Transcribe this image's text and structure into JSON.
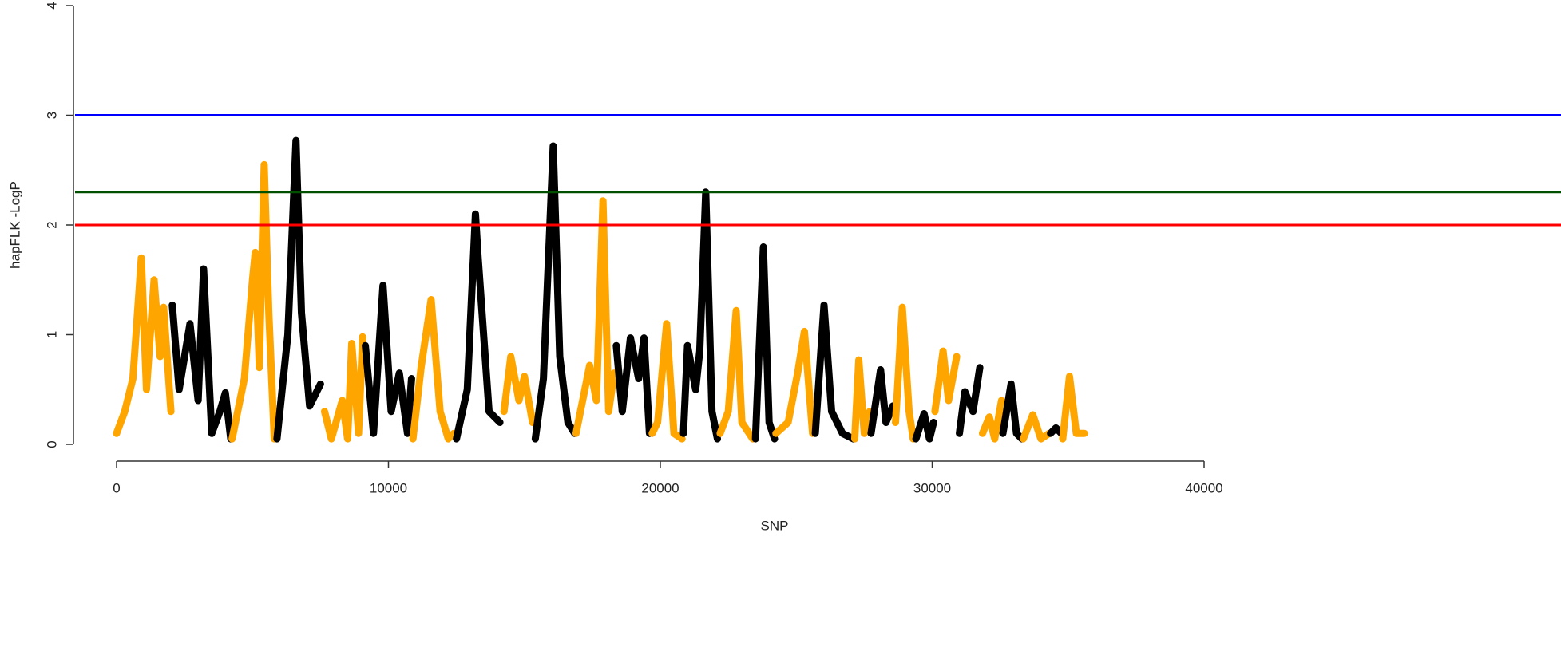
{
  "chart_data": {
    "type": "line",
    "xlabel": "SNP",
    "ylabel": "hapFLK -LogP",
    "xlim": [
      0,
      40000
    ],
    "xticks": [
      0,
      10000,
      20000,
      30000,
      40000
    ],
    "ylim": [
      0,
      4
    ],
    "yticks": [
      0,
      1,
      2,
      3,
      4
    ],
    "hlines": [
      {
        "value": 3,
        "color": "#0000ff"
      },
      {
        "value": 2.3,
        "color": "#005000"
      },
      {
        "value": 2,
        "color": "#ff0000"
      }
    ],
    "series": [
      {
        "color": "#ffa500",
        "x": [
          0,
          300,
          600,
          910,
          1100,
          1380,
          1600,
          1730,
          2000
        ],
        "values": [
          0.1,
          0.3,
          0.6,
          1.7,
          0.5,
          1.5,
          0.8,
          1.25,
          0.3
        ]
      },
      {
        "color": "#000000",
        "x": [
          2050,
          2300,
          2700,
          3000,
          3200,
          3500,
          3800,
          4000,
          4200
        ],
        "values": [
          1.27,
          0.5,
          1.1,
          0.4,
          1.6,
          0.1,
          0.3,
          0.47,
          0.05
        ]
      },
      {
        "color": "#ffa500",
        "x": [
          4250,
          4700,
          5000,
          5100,
          5250,
          5430,
          5600,
          5800
        ],
        "values": [
          0.05,
          0.6,
          1.5,
          1.75,
          0.7,
          2.55,
          1.2,
          0.05
        ]
      },
      {
        "color": "#000000",
        "x": [
          5900,
          6300,
          6600,
          6800,
          7100,
          7500
        ],
        "values": [
          0.05,
          1.0,
          2.77,
          1.2,
          0.35,
          0.55
        ]
      },
      {
        "color": "#ffa500",
        "x": [
          7650,
          7900,
          8300,
          8500,
          8650,
          8900,
          9050
        ],
        "values": [
          0.3,
          0.05,
          0.4,
          0.05,
          0.92,
          0.1,
          0.98
        ]
      },
      {
        "color": "#000000",
        "x": [
          9150,
          9450,
          9800,
          10100,
          10400,
          10700,
          10850
        ],
        "values": [
          0.9,
          0.1,
          1.45,
          0.3,
          0.65,
          0.1,
          0.6
        ]
      },
      {
        "color": "#ffa500",
        "x": [
          10900,
          11200,
          11570,
          11900,
          12200,
          12400
        ],
        "values": [
          0.05,
          0.7,
          1.32,
          0.3,
          0.05,
          0.1
        ]
      },
      {
        "color": "#000000",
        "x": [
          12500,
          12900,
          13200,
          13300,
          13700,
          14100
        ],
        "values": [
          0.05,
          0.5,
          2.1,
          1.7,
          0.3,
          0.2
        ]
      },
      {
        "color": "#ffa500",
        "x": [
          14250,
          14500,
          14800,
          15000,
          15300
        ],
        "values": [
          0.3,
          0.8,
          0.4,
          0.62,
          0.2
        ]
      },
      {
        "color": "#000000",
        "x": [
          15400,
          15700,
          16060,
          16300,
          16600,
          16850
        ],
        "values": [
          0.05,
          0.6,
          2.72,
          0.8,
          0.2,
          0.1
        ]
      },
      {
        "color": "#ffa500",
        "x": [
          16900,
          17400,
          17650,
          17890,
          18100,
          18300
        ],
        "values": [
          0.1,
          0.72,
          0.4,
          2.22,
          0.3,
          0.65
        ]
      },
      {
        "color": "#000000",
        "x": [
          18380,
          18600,
          18900,
          19200,
          19400,
          19600
        ],
        "values": [
          0.9,
          0.3,
          0.97,
          0.6,
          0.97,
          0.1
        ]
      },
      {
        "color": "#ffa500",
        "x": [
          19700,
          19900,
          20230,
          20500,
          20800
        ],
        "values": [
          0.1,
          0.2,
          1.1,
          0.1,
          0.05
        ]
      },
      {
        "color": "#000000",
        "x": [
          20850,
          21000,
          21300,
          21450,
          21670,
          21900,
          22100
        ],
        "values": [
          0.1,
          0.9,
          0.5,
          0.85,
          2.3,
          0.3,
          0.05
        ]
      },
      {
        "color": "#ffa500",
        "x": [
          22200,
          22500,
          22790,
          23000,
          23400
        ],
        "values": [
          0.1,
          0.3,
          1.22,
          0.2,
          0.05
        ]
      },
      {
        "color": "#000000",
        "x": [
          23500,
          23790,
          24000,
          24200
        ],
        "values": [
          0.05,
          1.8,
          0.2,
          0.05
        ]
      },
      {
        "color": "#ffa500",
        "x": [
          24250,
          24700,
          25050,
          25300,
          25600
        ],
        "values": [
          0.1,
          0.2,
          0.65,
          1.03,
          0.1
        ]
      },
      {
        "color": "#000000",
        "x": [
          25700,
          26020,
          26300,
          26700,
          27100
        ],
        "values": [
          0.1,
          1.27,
          0.3,
          0.1,
          0.05
        ]
      },
      {
        "color": "#ffa500",
        "x": [
          27150,
          27300,
          27500,
          27700
        ],
        "values": [
          0.05,
          0.77,
          0.1,
          0.3
        ]
      },
      {
        "color": "#000000",
        "x": [
          27750,
          28100,
          28300,
          28550
        ],
        "values": [
          0.1,
          0.68,
          0.2,
          0.35
        ]
      },
      {
        "color": "#ffa500",
        "x": [
          28650,
          28900,
          29150,
          29300
        ],
        "values": [
          0.2,
          1.25,
          0.3,
          0.05
        ]
      },
      {
        "color": "#000000",
        "x": [
          29400,
          29700,
          29900,
          30050
        ],
        "values": [
          0.05,
          0.28,
          0.05,
          0.2
        ]
      },
      {
        "color": "#ffa500",
        "x": [
          30100,
          30400,
          30600,
          30900
        ],
        "values": [
          0.3,
          0.85,
          0.4,
          0.8
        ]
      },
      {
        "color": "#000000",
        "x": [
          31000,
          31200,
          31500,
          31750
        ],
        "values": [
          0.1,
          0.48,
          0.3,
          0.7
        ]
      },
      {
        "color": "#ffa500",
        "x": [
          31850,
          32100,
          32300,
          32550
        ],
        "values": [
          0.1,
          0.25,
          0.05,
          0.4
        ]
      },
      {
        "color": "#000000",
        "x": [
          32600,
          32900,
          33100,
          33300
        ],
        "values": [
          0.1,
          0.55,
          0.1,
          0.05
        ]
      },
      {
        "color": "#ffa500",
        "x": [
          33350,
          33700,
          34000,
          34300
        ],
        "values": [
          0.05,
          0.27,
          0.05,
          0.1
        ]
      },
      {
        "color": "#000000",
        "x": [
          34350,
          34550,
          34750
        ],
        "values": [
          0.1,
          0.15,
          0.1
        ]
      },
      {
        "color": "#ffa500",
        "x": [
          34800,
          35050,
          35300,
          35600
        ],
        "values": [
          0.05,
          0.62,
          0.1,
          0.1
        ]
      }
    ]
  }
}
